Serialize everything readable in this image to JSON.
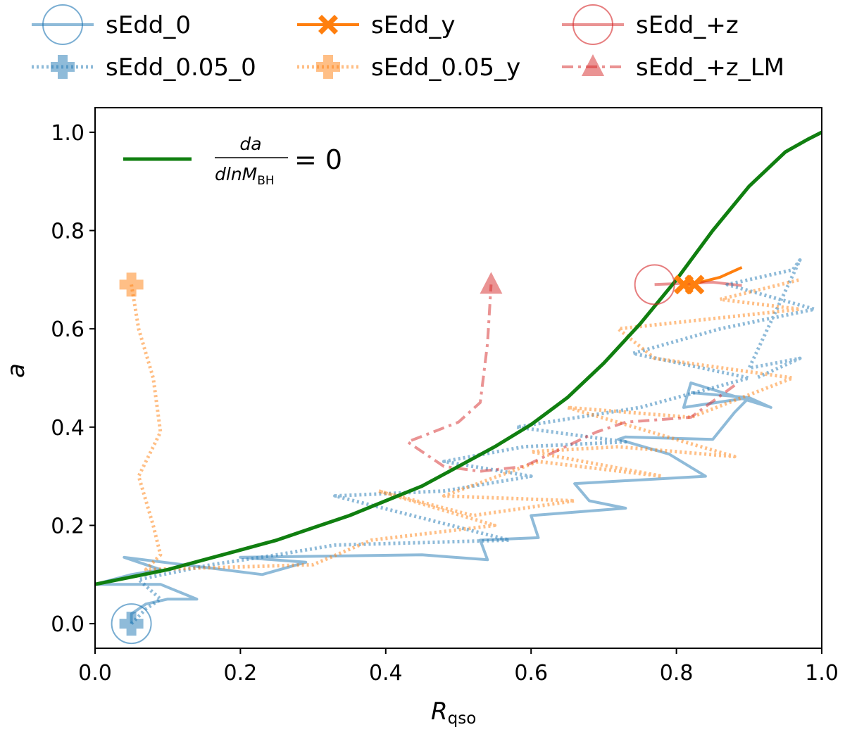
{
  "chart_data": {
    "type": "line",
    "xlabel": "R",
    "xlabel_sub": "qso",
    "ylabel": "a",
    "xlim": [
      0.0,
      1.0
    ],
    "ylim": [
      -0.05,
      1.05
    ],
    "xticks": [
      "0.0",
      "0.2",
      "0.4",
      "0.6",
      "0.8",
      "1.0"
    ],
    "yticks": [
      "0.0",
      "0.2",
      "0.4",
      "0.6",
      "0.8",
      "1.0"
    ],
    "xtick_values": [
      0.0,
      0.2,
      0.4,
      0.6,
      0.8,
      1.0
    ],
    "ytick_values": [
      0.0,
      0.2,
      0.4,
      0.6,
      0.8,
      1.0
    ],
    "inner_legend": {
      "numerator": "da",
      "denominator": "dlnM",
      "denominator_sub": "BH",
      "equals": "= 0",
      "color": "#107f10"
    },
    "legend": [
      {
        "label": "sEdd_0",
        "color": "#1f77b4",
        "style": "solid",
        "marker": "circle"
      },
      {
        "label": "sEdd_y",
        "color": "#ff7f0e",
        "style": "solid",
        "marker": "x"
      },
      {
        "label": "sEdd_+z",
        "color": "#d62728",
        "style": "solid",
        "marker": "circle"
      },
      {
        "label": "sEdd_0.05_0",
        "color": "#1f77b4",
        "style": "dotted",
        "marker": "plus"
      },
      {
        "label": "sEdd_0.05_y",
        "color": "#ff7f0e",
        "style": "dotted",
        "marker": "plus"
      },
      {
        "label": "sEdd_+z_LM",
        "color": "#d62728",
        "style": "dashdot",
        "marker": "triangle"
      }
    ],
    "curve": {
      "name": "da/dlnM_BH = 0",
      "color": "#107f10",
      "x": [
        0.0,
        0.05,
        0.1,
        0.15,
        0.2,
        0.25,
        0.3,
        0.35,
        0.4,
        0.45,
        0.5,
        0.55,
        0.6,
        0.65,
        0.7,
        0.75,
        0.8,
        0.85,
        0.9,
        0.95,
        0.98,
        1.0
      ],
      "y": [
        0.08,
        0.095,
        0.11,
        0.13,
        0.15,
        0.17,
        0.195,
        0.22,
        0.25,
        0.28,
        0.32,
        0.36,
        0.405,
        0.46,
        0.53,
        0.61,
        0.7,
        0.8,
        0.89,
        0.96,
        0.985,
        1.0
      ]
    },
    "series": [
      {
        "name": "sEdd_0",
        "color": "#1f77b4",
        "style": "solid",
        "alpha": 0.5,
        "width": 4,
        "x": [
          0.05,
          0.05,
          0.07,
          0.1,
          0.14,
          0.09,
          0.0,
          0.05,
          0.09,
          0.04,
          0.23,
          0.29,
          0.2,
          0.45,
          0.54,
          0.53,
          0.61,
          0.6,
          0.73,
          0.68,
          0.66,
          0.84,
          0.79,
          0.72,
          0.73,
          0.85,
          0.88,
          0.9,
          0.81,
          0.82,
          0.93,
          0.9,
          0.82
        ],
        "y": [
          0.0,
          0.02,
          0.04,
          0.05,
          0.05,
          0.08,
          0.08,
          0.1,
          0.11,
          0.135,
          0.1,
          0.125,
          0.135,
          0.14,
          0.13,
          0.17,
          0.175,
          0.22,
          0.235,
          0.25,
          0.285,
          0.3,
          0.345,
          0.375,
          0.38,
          0.375,
          0.43,
          0.46,
          0.44,
          0.49,
          0.44,
          0.46,
          0.47
        ]
      },
      {
        "name": "sEdd_y",
        "color": "#ff7f0e",
        "style": "solid",
        "alpha": 1.0,
        "width": 4,
        "x": [
          0.81,
          0.82,
          0.86,
          0.89
        ],
        "y": [
          0.69,
          0.69,
          0.705,
          0.725
        ]
      },
      {
        "name": "sEdd_+z",
        "color": "#d62728",
        "style": "solid",
        "alpha": 0.5,
        "width": 4,
        "x": [
          0.77,
          0.85,
          0.89
        ],
        "y": [
          0.69,
          0.695,
          0.688
        ]
      },
      {
        "name": "sEdd_0.05_0",
        "color": "#1f77b4",
        "style": "dotted",
        "alpha": 0.5,
        "width": 5,
        "x": [
          0.05,
          0.07,
          0.09,
          0.06,
          0.16,
          0.25,
          0.33,
          0.57,
          0.33,
          0.48,
          0.6,
          0.48,
          0.59,
          0.73,
          0.58,
          0.75,
          0.9,
          0.74,
          0.86,
          0.99,
          0.87,
          0.96,
          0.97,
          0.9,
          0.97,
          0.91
        ],
        "y": [
          0.0,
          0.03,
          0.05,
          0.09,
          0.12,
          0.14,
          0.16,
          0.17,
          0.26,
          0.27,
          0.3,
          0.33,
          0.36,
          0.37,
          0.4,
          0.44,
          0.5,
          0.55,
          0.6,
          0.64,
          0.69,
          0.72,
          0.74,
          0.52,
          0.54,
          0.5
        ]
      },
      {
        "name": "sEdd_0.05_y",
        "color": "#ff7f0e",
        "style": "dotted",
        "alpha": 0.5,
        "width": 5,
        "x": [
          0.05,
          0.06,
          0.08,
          0.09,
          0.06,
          0.08,
          0.09,
          0.07,
          0.3,
          0.38,
          0.55,
          0.39,
          0.52,
          0.66,
          0.48,
          0.61,
          0.78,
          0.6,
          0.72,
          0.88,
          0.65,
          0.82,
          0.96,
          0.77,
          0.72,
          0.97,
          0.86,
          0.97
        ],
        "y": [
          0.69,
          0.6,
          0.5,
          0.39,
          0.3,
          0.2,
          0.14,
          0.11,
          0.12,
          0.17,
          0.2,
          0.27,
          0.22,
          0.25,
          0.26,
          0.33,
          0.3,
          0.35,
          0.36,
          0.34,
          0.44,
          0.42,
          0.5,
          0.54,
          0.6,
          0.64,
          0.66,
          0.7
        ]
      },
      {
        "name": "sEdd_+z_LM",
        "color": "#d62728",
        "style": "dashdot",
        "alpha": 0.5,
        "width": 4,
        "x": [
          0.88,
          0.82,
          0.73,
          0.69,
          0.59,
          0.53,
          0.48,
          0.43,
          0.5,
          0.53,
          0.54,
          0.545
        ],
        "y": [
          0.485,
          0.42,
          0.41,
          0.39,
          0.32,
          0.31,
          0.32,
          0.37,
          0.41,
          0.45,
          0.57,
          0.69
        ]
      }
    ],
    "markers": [
      {
        "name": "marker-sEdd_0-start",
        "series": "sEdd_0",
        "shape": "circle",
        "x": 0.05,
        "y": 0.0,
        "color": "#1f77b4"
      },
      {
        "name": "marker-sEdd_0.05_0-start",
        "series": "sEdd_0.05_0",
        "shape": "plus",
        "x": 0.05,
        "y": 0.0,
        "color": "#1f77b4"
      },
      {
        "name": "marker-sEdd_0.05_y-start",
        "series": "sEdd_0.05_y",
        "shape": "plus",
        "x": 0.05,
        "y": 0.69,
        "color": "#ff7f0e"
      },
      {
        "name": "marker-sEdd_+z-start",
        "series": "sEdd_+z",
        "shape": "circle",
        "x": 0.77,
        "y": 0.69,
        "color": "#d62728"
      },
      {
        "name": "marker-sEdd_y-start",
        "series": "sEdd_y",
        "shape": "x",
        "x": 0.81,
        "y": 0.69,
        "color": "#ff7f0e"
      },
      {
        "name": "marker-sEdd_y-start-b",
        "series": "sEdd_y",
        "shape": "x",
        "x": 0.825,
        "y": 0.69,
        "color": "#ff7f0e"
      },
      {
        "name": "marker-sEdd_+z_LM-start",
        "series": "sEdd_+z_LM",
        "shape": "triangle",
        "x": 0.545,
        "y": 0.69,
        "color": "#d62728"
      }
    ]
  }
}
